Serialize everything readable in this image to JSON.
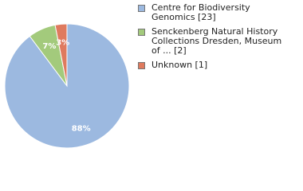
{
  "chart_data": {
    "type": "pie",
    "categories": [
      "Centre for Biodiversity Genomics [23]",
      "Senckenberg Natural History Collections Dresden, Museum of ... [2]",
      "Unknown [1]"
    ],
    "values": [
      88,
      7,
      3
    ],
    "value_labels": [
      "88%",
      "7%",
      "3%"
    ],
    "colors": [
      "#9cb9e0",
      "#a3ca7c",
      "#df7a5e"
    ]
  }
}
